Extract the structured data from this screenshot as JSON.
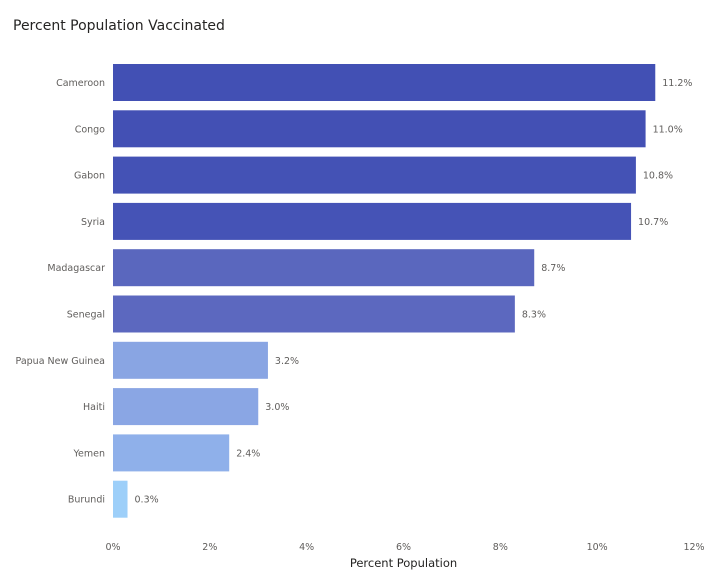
{
  "chart_data": {
    "type": "bar",
    "orientation": "horizontal",
    "title": "Percent Population Vaccinated",
    "xlabel": "Percent Population",
    "ylabel": "",
    "categories": [
      "Cameroon",
      "Congo",
      "Gabon",
      "Syria",
      "Madagascar",
      "Senegal",
      "Papua New Guinea",
      "Haiti",
      "Yemen",
      "Burundi"
    ],
    "values": [
      11.2,
      11.0,
      10.8,
      10.7,
      8.7,
      8.3,
      3.2,
      3.0,
      2.4,
      0.3
    ],
    "data_labels": [
      "11.2%",
      "11.0%",
      "10.8%",
      "10.7%",
      "8.7%",
      "8.3%",
      "3.2%",
      "3.0%",
      "2.4%",
      "0.3%"
    ],
    "xlim": [
      0,
      12
    ],
    "x_ticks": [
      "0%",
      "2%",
      "4%",
      "6%",
      "8%",
      "10%",
      "12%"
    ],
    "grid": false,
    "legend": "none",
    "bar_colors": [
      "#4250b4",
      "#4350b4",
      "#4452b5",
      "#4553b6",
      "#5a67be",
      "#5c68bf",
      "#89a5e3",
      "#8aa6e4",
      "#8fb0ea",
      "#9dcff9"
    ]
  }
}
